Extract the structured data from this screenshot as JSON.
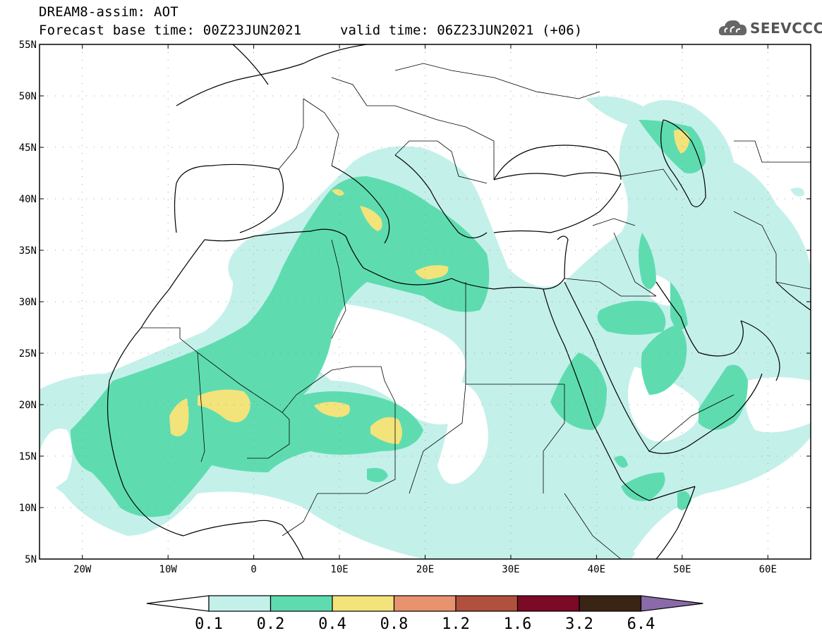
{
  "header": {
    "title": "DREAM8-assim: AOT",
    "base_time": "Forecast base time: 00Z23JUN2021",
    "valid_time": "valid time: 06Z23JUN2021 (+06)"
  },
  "logo": {
    "text": "SEEVCCC",
    "icon": "cloud-logo-icon"
  },
  "map": {
    "lon_range": [
      -25,
      65
    ],
    "lat_range": [
      5,
      55
    ],
    "lat_ticks": [
      "5N",
      "10N",
      "15N",
      "20N",
      "25N",
      "30N",
      "35N",
      "40N",
      "45N",
      "50N",
      "55N"
    ],
    "lon_ticks": [
      "20W",
      "10W",
      "0",
      "10E",
      "20E",
      "30E",
      "40E",
      "50E",
      "60E"
    ]
  },
  "colorbar": {
    "labels": [
      "0.1",
      "0.2",
      "0.4",
      "0.8",
      "1.2",
      "1.6",
      "3.2",
      "6.4"
    ],
    "colors": [
      "#c4f0ea",
      "#5edcb0",
      "#f3e37b",
      "#e8936e",
      "#b0503d",
      "#7a0a26",
      "#3a2414",
      "#8a6aa8"
    ],
    "under_color": "#ffffff"
  },
  "colors": {
    "coast": "#000000",
    "level1": "#c4f0ea",
    "level2": "#5edcb0",
    "level3": "#f3e37b"
  }
}
